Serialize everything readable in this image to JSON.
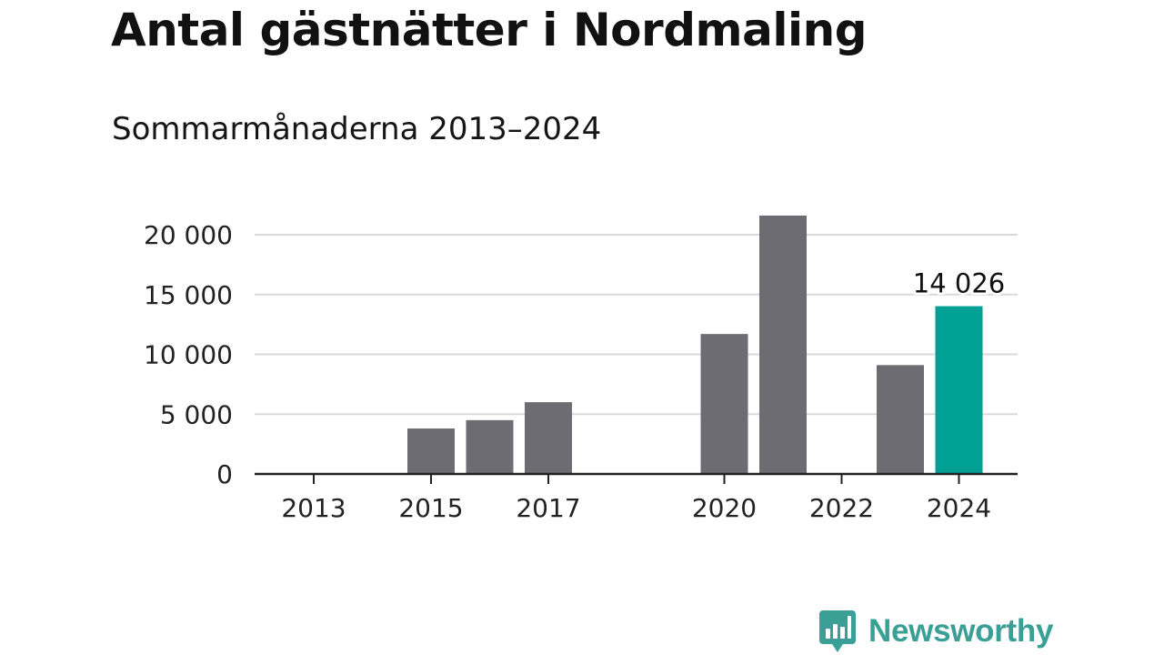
{
  "title": "Antal gästnätter i Nordmaling",
  "subtitle": "Sommarmånaderna 2013–2024",
  "brand": {
    "name": "Newsworthy",
    "color": "#3a9f95"
  },
  "colors": {
    "bar": "#6d6c72",
    "highlight": "#00a095",
    "grid": "#d9d9d9",
    "axis": "#222222",
    "text": "#111111"
  },
  "chart_data": {
    "type": "bar",
    "categories": [
      "2013",
      "2014",
      "2015",
      "2016",
      "2017",
      "2018",
      "2019",
      "2020",
      "2021",
      "2022",
      "2023",
      "2024"
    ],
    "values": [
      null,
      null,
      3800,
      4500,
      6000,
      null,
      null,
      11700,
      21600,
      null,
      9100,
      14026
    ],
    "highlight_index": 11,
    "data_labels": [
      {
        "index": 11,
        "text": "14 026"
      }
    ],
    "xticks": [
      "2013",
      "2015",
      "2017",
      "2020",
      "2022",
      "2024"
    ],
    "yticks": [
      0,
      5000,
      10000,
      15000,
      20000
    ],
    "ytick_labels": [
      "0",
      "5 000",
      "10 000",
      "15 000",
      "20 000"
    ],
    "ylim": [
      0,
      20000
    ],
    "grid": true,
    "legend": "none"
  }
}
